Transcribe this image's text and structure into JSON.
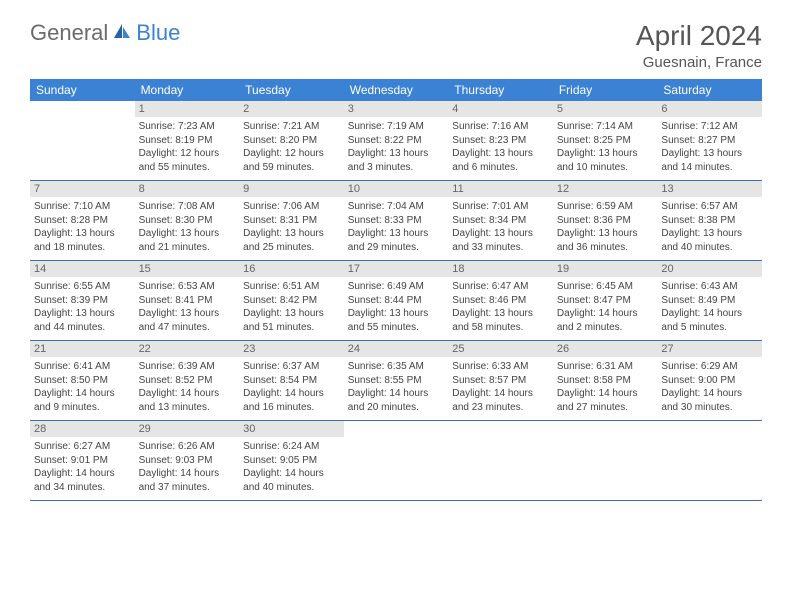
{
  "logo": {
    "general": "General",
    "blue": "Blue"
  },
  "title": "April 2024",
  "location": "Guesnain, France",
  "header_bg": "#3b82d4",
  "day_header_color": "#ffffff",
  "daynum_bg": "#e5e5e5",
  "border_color": "#3b6fa8",
  "day_names": [
    "Sunday",
    "Monday",
    "Tuesday",
    "Wednesday",
    "Thursday",
    "Friday",
    "Saturday"
  ],
  "weeks": [
    [
      {
        "n": "",
        "sr": "",
        "ss": "",
        "dl": ""
      },
      {
        "n": "1",
        "sr": "Sunrise: 7:23 AM",
        "ss": "Sunset: 8:19 PM",
        "dl": "Daylight: 12 hours and 55 minutes."
      },
      {
        "n": "2",
        "sr": "Sunrise: 7:21 AM",
        "ss": "Sunset: 8:20 PM",
        "dl": "Daylight: 12 hours and 59 minutes."
      },
      {
        "n": "3",
        "sr": "Sunrise: 7:19 AM",
        "ss": "Sunset: 8:22 PM",
        "dl": "Daylight: 13 hours and 3 minutes."
      },
      {
        "n": "4",
        "sr": "Sunrise: 7:16 AM",
        "ss": "Sunset: 8:23 PM",
        "dl": "Daylight: 13 hours and 6 minutes."
      },
      {
        "n": "5",
        "sr": "Sunrise: 7:14 AM",
        "ss": "Sunset: 8:25 PM",
        "dl": "Daylight: 13 hours and 10 minutes."
      },
      {
        "n": "6",
        "sr": "Sunrise: 7:12 AM",
        "ss": "Sunset: 8:27 PM",
        "dl": "Daylight: 13 hours and 14 minutes."
      }
    ],
    [
      {
        "n": "7",
        "sr": "Sunrise: 7:10 AM",
        "ss": "Sunset: 8:28 PM",
        "dl": "Daylight: 13 hours and 18 minutes."
      },
      {
        "n": "8",
        "sr": "Sunrise: 7:08 AM",
        "ss": "Sunset: 8:30 PM",
        "dl": "Daylight: 13 hours and 21 minutes."
      },
      {
        "n": "9",
        "sr": "Sunrise: 7:06 AM",
        "ss": "Sunset: 8:31 PM",
        "dl": "Daylight: 13 hours and 25 minutes."
      },
      {
        "n": "10",
        "sr": "Sunrise: 7:04 AM",
        "ss": "Sunset: 8:33 PM",
        "dl": "Daylight: 13 hours and 29 minutes."
      },
      {
        "n": "11",
        "sr": "Sunrise: 7:01 AM",
        "ss": "Sunset: 8:34 PM",
        "dl": "Daylight: 13 hours and 33 minutes."
      },
      {
        "n": "12",
        "sr": "Sunrise: 6:59 AM",
        "ss": "Sunset: 8:36 PM",
        "dl": "Daylight: 13 hours and 36 minutes."
      },
      {
        "n": "13",
        "sr": "Sunrise: 6:57 AM",
        "ss": "Sunset: 8:38 PM",
        "dl": "Daylight: 13 hours and 40 minutes."
      }
    ],
    [
      {
        "n": "14",
        "sr": "Sunrise: 6:55 AM",
        "ss": "Sunset: 8:39 PM",
        "dl": "Daylight: 13 hours and 44 minutes."
      },
      {
        "n": "15",
        "sr": "Sunrise: 6:53 AM",
        "ss": "Sunset: 8:41 PM",
        "dl": "Daylight: 13 hours and 47 minutes."
      },
      {
        "n": "16",
        "sr": "Sunrise: 6:51 AM",
        "ss": "Sunset: 8:42 PM",
        "dl": "Daylight: 13 hours and 51 minutes."
      },
      {
        "n": "17",
        "sr": "Sunrise: 6:49 AM",
        "ss": "Sunset: 8:44 PM",
        "dl": "Daylight: 13 hours and 55 minutes."
      },
      {
        "n": "18",
        "sr": "Sunrise: 6:47 AM",
        "ss": "Sunset: 8:46 PM",
        "dl": "Daylight: 13 hours and 58 minutes."
      },
      {
        "n": "19",
        "sr": "Sunrise: 6:45 AM",
        "ss": "Sunset: 8:47 PM",
        "dl": "Daylight: 14 hours and 2 minutes."
      },
      {
        "n": "20",
        "sr": "Sunrise: 6:43 AM",
        "ss": "Sunset: 8:49 PM",
        "dl": "Daylight: 14 hours and 5 minutes."
      }
    ],
    [
      {
        "n": "21",
        "sr": "Sunrise: 6:41 AM",
        "ss": "Sunset: 8:50 PM",
        "dl": "Daylight: 14 hours and 9 minutes."
      },
      {
        "n": "22",
        "sr": "Sunrise: 6:39 AM",
        "ss": "Sunset: 8:52 PM",
        "dl": "Daylight: 14 hours and 13 minutes."
      },
      {
        "n": "23",
        "sr": "Sunrise: 6:37 AM",
        "ss": "Sunset: 8:54 PM",
        "dl": "Daylight: 14 hours and 16 minutes."
      },
      {
        "n": "24",
        "sr": "Sunrise: 6:35 AM",
        "ss": "Sunset: 8:55 PM",
        "dl": "Daylight: 14 hours and 20 minutes."
      },
      {
        "n": "25",
        "sr": "Sunrise: 6:33 AM",
        "ss": "Sunset: 8:57 PM",
        "dl": "Daylight: 14 hours and 23 minutes."
      },
      {
        "n": "26",
        "sr": "Sunrise: 6:31 AM",
        "ss": "Sunset: 8:58 PM",
        "dl": "Daylight: 14 hours and 27 minutes."
      },
      {
        "n": "27",
        "sr": "Sunrise: 6:29 AM",
        "ss": "Sunset: 9:00 PM",
        "dl": "Daylight: 14 hours and 30 minutes."
      }
    ],
    [
      {
        "n": "28",
        "sr": "Sunrise: 6:27 AM",
        "ss": "Sunset: 9:01 PM",
        "dl": "Daylight: 14 hours and 34 minutes."
      },
      {
        "n": "29",
        "sr": "Sunrise: 6:26 AM",
        "ss": "Sunset: 9:03 PM",
        "dl": "Daylight: 14 hours and 37 minutes."
      },
      {
        "n": "30",
        "sr": "Sunrise: 6:24 AM",
        "ss": "Sunset: 9:05 PM",
        "dl": "Daylight: 14 hours and 40 minutes."
      },
      {
        "n": "",
        "sr": "",
        "ss": "",
        "dl": ""
      },
      {
        "n": "",
        "sr": "",
        "ss": "",
        "dl": ""
      },
      {
        "n": "",
        "sr": "",
        "ss": "",
        "dl": ""
      },
      {
        "n": "",
        "sr": "",
        "ss": "",
        "dl": ""
      }
    ]
  ]
}
